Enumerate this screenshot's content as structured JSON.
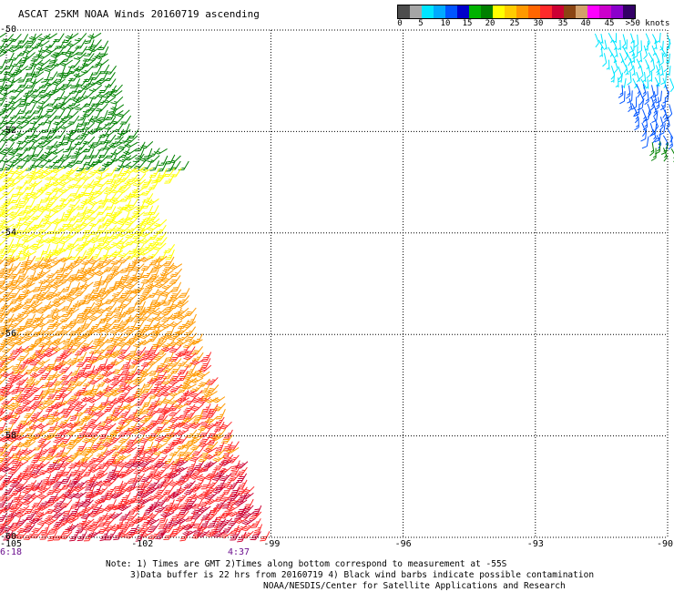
{
  "title": "ASCAT 25KM NOAA Winds 20160719 ascending",
  "colorbar": {
    "colors": [
      "#4d4d4d",
      "#a6a6a6",
      "#00e6ff",
      "#00aaff",
      "#0055ff",
      "#0000cc",
      "#00b300",
      "#008000",
      "#ffff00",
      "#ffcc00",
      "#ff9900",
      "#ff6600",
      "#ff2a2a",
      "#cc0033",
      "#8b4513",
      "#d2a06a",
      "#ff00ff",
      "#cc00cc",
      "#8b00cc",
      "#330066"
    ],
    "labels": [
      "0",
      "5",
      "10",
      "15",
      "20",
      "25",
      "30",
      "35",
      "40",
      "45",
      ">50 knots"
    ]
  },
  "lat_labels": [
    "-50",
    "-52",
    "-54",
    "-56",
    "-58",
    "-60"
  ],
  "lon_labels": [
    "-105",
    "-102",
    "-99",
    "-96",
    "-93",
    "-90"
  ],
  "time_labels": [
    "6:18",
    "4:37"
  ],
  "footer": {
    "line1": "Note: 1) Times are GMT 2)Times along bottom correspond to measurement at -55S",
    "line2": "3)Data buffer is 22 hrs from 20160719 4) Black wind barbs indicate possible contamination",
    "line3": "NOAA/NESDIS/Center for Satellite Applications and Research"
  },
  "map_data": {
    "lat_range": [
      -60,
      -50
    ],
    "lon_range": [
      -105,
      -90
    ],
    "swaths": [
      {
        "name": "west",
        "speed_bands_kt": [
          15,
          20,
          25,
          30,
          35
        ]
      },
      {
        "name": "east",
        "speed_bands_kt": [
          5,
          10,
          15
        ]
      }
    ]
  }
}
